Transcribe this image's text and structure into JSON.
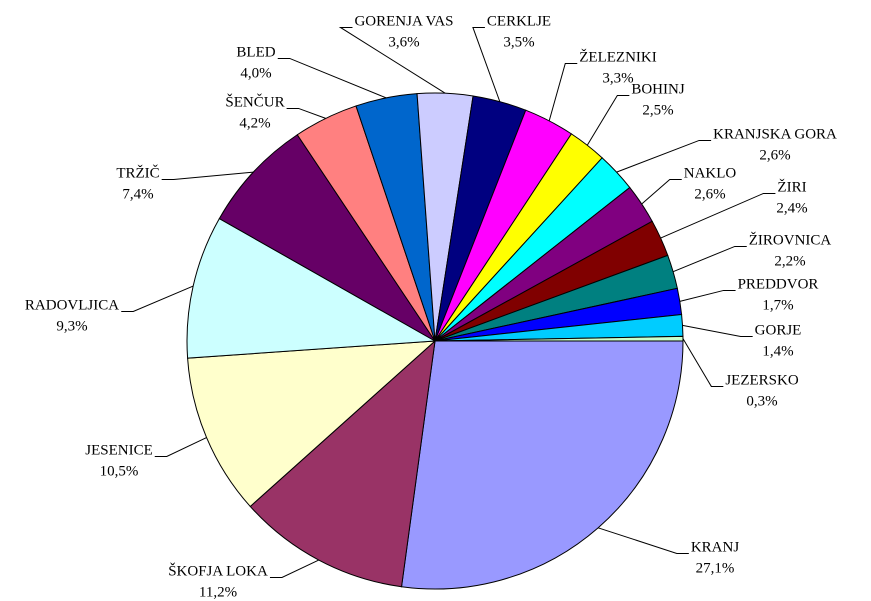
{
  "chart_data": {
    "type": "pie",
    "categories": [
      "KRANJ",
      "ŠKOFJA LOKA",
      "JESENICE",
      "RADOVLJICA",
      "TRŽIČ",
      "ŠENČUR",
      "BLED",
      "GORENJA VAS",
      "CERKLJE",
      "ŽELEZNIKI",
      "BOHINJ",
      "KRANJSKA GORA",
      "NAKLO",
      "ŽIRI",
      "ŽIROVNICA",
      "PREDDVOR",
      "GORJE",
      "JEZERSKO"
    ],
    "values": [
      27.1,
      11.2,
      10.5,
      9.3,
      7.4,
      4.2,
      4.0,
      3.6,
      3.5,
      3.3,
      2.5,
      2.6,
      2.6,
      2.4,
      2.2,
      1.7,
      1.4,
      0.3
    ],
    "value_labels": [
      "27,1%",
      "11,2%",
      "10,5%",
      "9,3%",
      "7,4%",
      "4,2%",
      "4,0%",
      "3,6%",
      "3,5%",
      "3,3%",
      "2,5%",
      "2,6%",
      "2,6%",
      "2,4%",
      "2,2%",
      "1,7%",
      "1,4%",
      "0,3%"
    ],
    "colors": [
      "#9999ff",
      "#993366",
      "#ffffcc",
      "#ccffff",
      "#660066",
      "#ff8080",
      "#0066cc",
      "#ccccff",
      "#000080",
      "#ff00ff",
      "#ffff00",
      "#00ffff",
      "#800080",
      "#800000",
      "#008080",
      "#0000ff",
      "#00ccff",
      "#ccffcc"
    ]
  }
}
